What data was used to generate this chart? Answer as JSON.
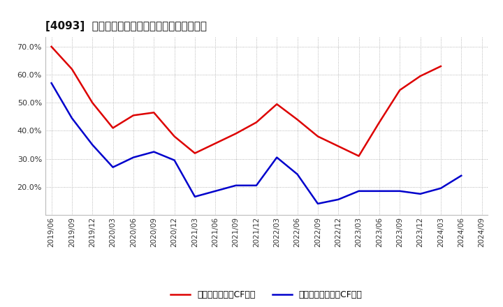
{
  "title": "[4093]  有利子負債キャッシュフロー比率の推移",
  "x_labels": [
    "2019/06",
    "2019/09",
    "2019/12",
    "2020/03",
    "2020/06",
    "2020/09",
    "2020/12",
    "2021/03",
    "2021/06",
    "2021/09",
    "2021/12",
    "2022/03",
    "2022/06",
    "2022/09",
    "2022/12",
    "2023/03",
    "2023/06",
    "2023/09",
    "2023/12",
    "2024/03",
    "2024/06",
    "2024/09"
  ],
  "red_values": [
    0.7,
    0.62,
    0.5,
    0.41,
    0.455,
    0.465,
    0.38,
    0.32,
    0.355,
    0.39,
    0.43,
    0.495,
    0.44,
    0.38,
    0.345,
    0.31,
    0.43,
    0.545,
    0.595,
    0.63,
    null,
    null
  ],
  "blue_values": [
    0.57,
    0.445,
    0.35,
    0.27,
    0.305,
    0.325,
    0.295,
    0.165,
    0.185,
    0.205,
    0.205,
    0.305,
    0.245,
    0.14,
    0.155,
    0.185,
    0.185,
    0.185,
    0.175,
    0.195,
    0.24,
    null
  ],
  "red_color": "#dd0000",
  "blue_color": "#0000cc",
  "bg_color": "#ffffff",
  "grid_color": "#999999",
  "legend_red": "有利子負債営業CF比率",
  "legend_blue": "有利子負債フリーCF比率",
  "ylim": [
    0.1,
    0.735
  ],
  "yticks": [
    0.2,
    0.3,
    0.4,
    0.5,
    0.6,
    0.7
  ]
}
